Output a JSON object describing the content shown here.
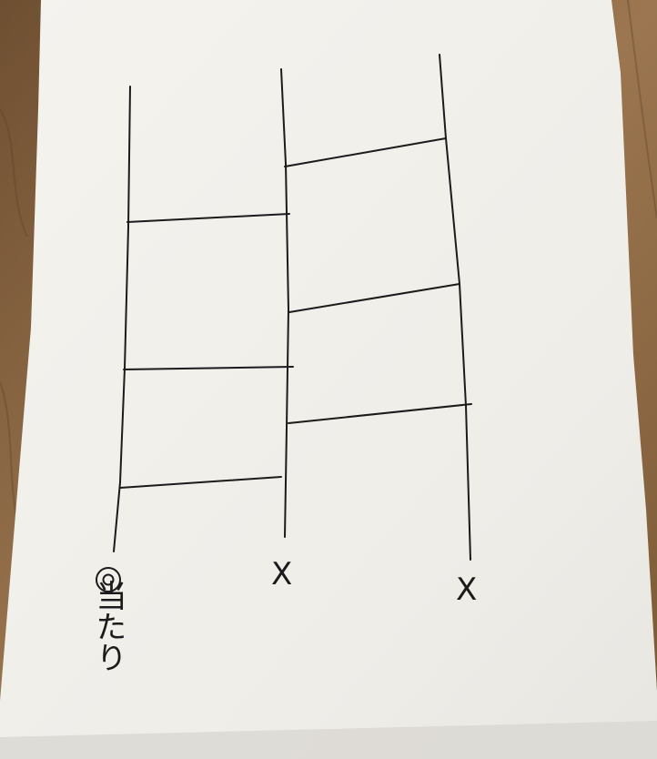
{
  "drawing": {
    "kind": "amidakuji",
    "rails": [
      {
        "id": "left",
        "result": "当たり",
        "mark": "double-circle"
      },
      {
        "id": "middle",
        "result": "X",
        "mark": "cross"
      },
      {
        "id": "right",
        "result": "X",
        "mark": "cross"
      }
    ],
    "colors": {
      "paper": "#f2f0ea",
      "ink": "#1b1b1b",
      "wood": "#8a6a45"
    }
  }
}
